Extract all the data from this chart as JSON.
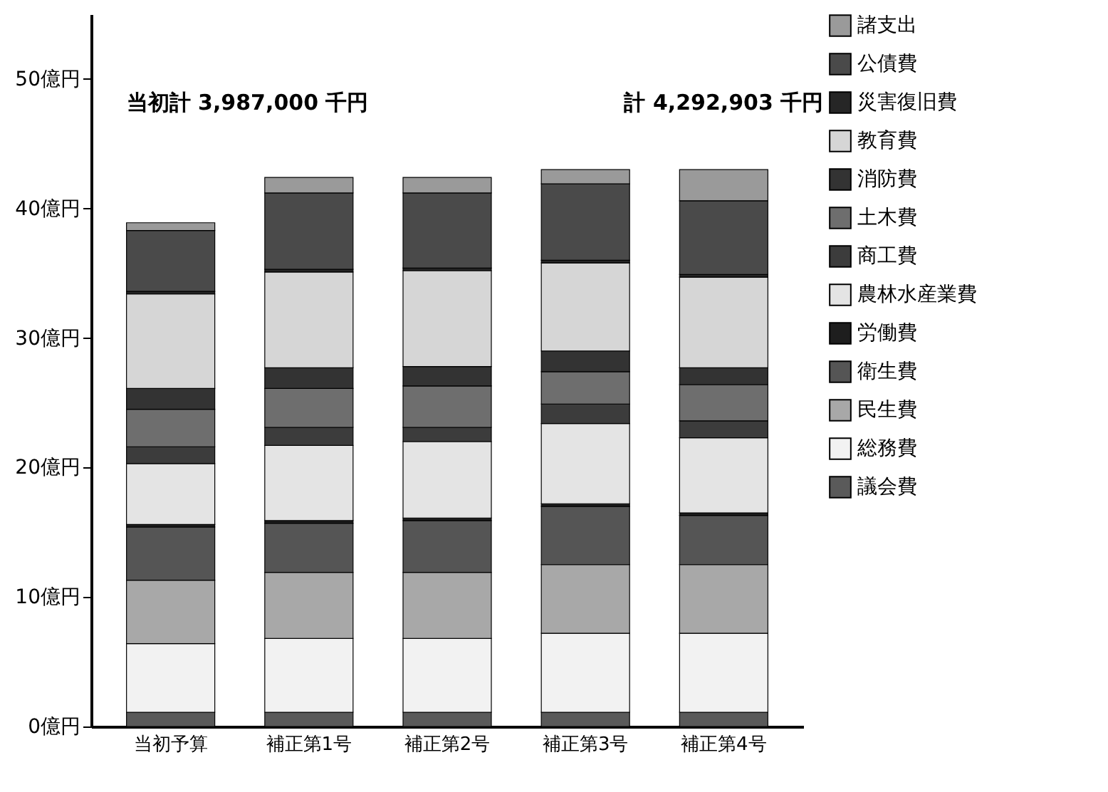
{
  "chart_data": {
    "type": "bar",
    "stacked": true,
    "categories": [
      "当初予算",
      "補正第1号",
      "補正第2号",
      "補正第3号",
      "補正第4号"
    ],
    "series": [
      {
        "name": "議会費",
        "color": "#5a5a5a",
        "values": [
          1.1,
          1.1,
          1.1,
          1.1,
          1.1
        ]
      },
      {
        "name": "総務費",
        "color": "#f2f2f2",
        "values": [
          5.3,
          5.7,
          5.7,
          6.1,
          6.1
        ]
      },
      {
        "name": "民生費",
        "color": "#a8a8a8",
        "values": [
          4.9,
          5.1,
          5.1,
          5.3,
          5.3
        ]
      },
      {
        "name": "衛生費",
        "color": "#555555",
        "values": [
          4.1,
          3.8,
          4.0,
          4.5,
          3.8
        ]
      },
      {
        "name": "労働費",
        "color": "#1e1e1e",
        "values": [
          0.2,
          0.2,
          0.2,
          0.2,
          0.2
        ]
      },
      {
        "name": "農林水産業費",
        "color": "#e4e4e4",
        "values": [
          4.7,
          5.8,
          5.9,
          6.2,
          5.8
        ]
      },
      {
        "name": "商工費",
        "color": "#3c3c3c",
        "values": [
          1.3,
          1.4,
          1.1,
          1.5,
          1.3
        ]
      },
      {
        "name": "土木費",
        "color": "#6e6e6e",
        "values": [
          2.9,
          3.0,
          3.2,
          2.5,
          2.8
        ]
      },
      {
        "name": "消防費",
        "color": "#333333",
        "values": [
          1.6,
          1.6,
          1.5,
          1.6,
          1.3
        ]
      },
      {
        "name": "教育費",
        "color": "#d6d6d6",
        "values": [
          7.3,
          7.4,
          7.4,
          6.8,
          7.0
        ]
      },
      {
        "name": "災害復旧費",
        "color": "#262626",
        "values": [
          0.2,
          0.2,
          0.2,
          0.2,
          0.2
        ]
      },
      {
        "name": "公債費",
        "color": "#4a4a4a",
        "values": [
          4.7,
          5.9,
          5.8,
          5.9,
          5.7
        ]
      },
      {
        "name": "諸支出",
        "color": "#9a9a9a",
        "values": [
          0.6,
          1.2,
          1.2,
          1.1,
          2.4
        ]
      }
    ],
    "ylim": [
      0,
      55
    ],
    "yticks": [
      {
        "value": 0,
        "label": "0億円"
      },
      {
        "value": 10,
        "label": "10億円"
      },
      {
        "value": 20,
        "label": "20億円"
      },
      {
        "value": 30,
        "label": "30億円"
      },
      {
        "value": 40,
        "label": "40億円"
      },
      {
        "value": 50,
        "label": "50億円"
      }
    ],
    "grid": false,
    "legend": "right",
    "annotations": [
      "当初計 3,987,000 千円",
      "計 4,292,903 千円"
    ]
  }
}
